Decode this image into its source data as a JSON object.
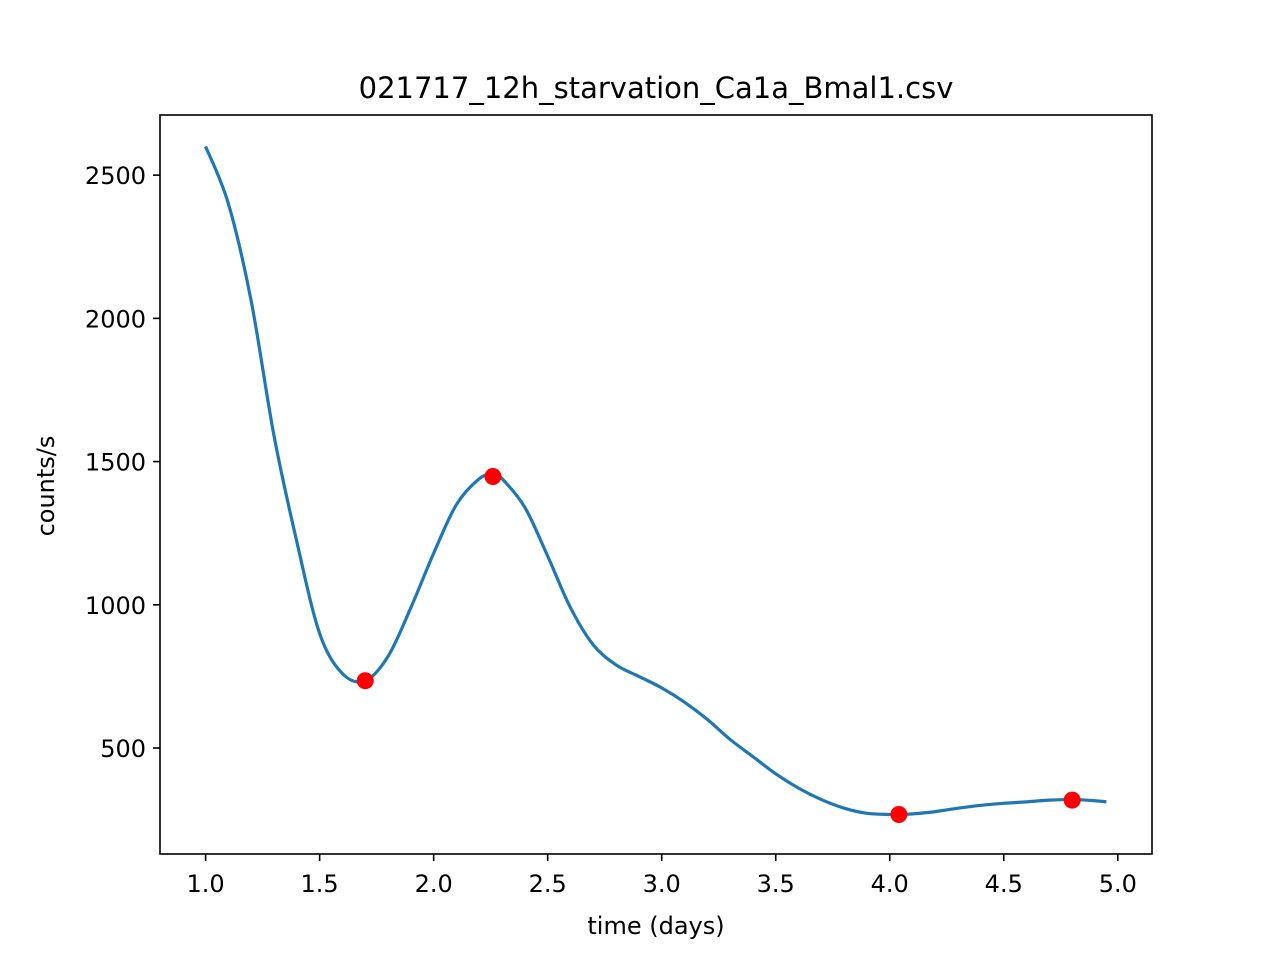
{
  "chart_data": {
    "type": "line",
    "title": "021717_12h_starvation_Ca1a_Bmal1.csv",
    "xlabel": "time (days)",
    "ylabel": "counts/s",
    "xlim": [
      0.8,
      5.15
    ],
    "ylim": [
      130,
      2710
    ],
    "xticks": [
      1.0,
      1.5,
      2.0,
      2.5,
      3.0,
      3.5,
      4.0,
      4.5,
      5.0
    ],
    "xtick_labels": [
      "1.0",
      "1.5",
      "2.0",
      "2.5",
      "3.0",
      "3.5",
      "4.0",
      "4.5",
      "5.0"
    ],
    "yticks": [
      500,
      1000,
      1500,
      2000,
      2500
    ],
    "ytick_labels": [
      "500",
      "1000",
      "1500",
      "2000",
      "2500"
    ],
    "grid": false,
    "series": [
      {
        "color": "#1f77b4",
        "x": [
          1.0,
          1.1,
          1.2,
          1.3,
          1.4,
          1.5,
          1.6,
          1.7,
          1.8,
          1.9,
          2.0,
          2.1,
          2.2,
          2.26,
          2.3,
          2.4,
          2.5,
          2.6,
          2.7,
          2.8,
          2.9,
          3.0,
          3.1,
          3.2,
          3.3,
          3.4,
          3.5,
          3.6,
          3.7,
          3.8,
          3.9,
          4.0,
          4.05,
          4.1,
          4.2,
          4.3,
          4.4,
          4.5,
          4.6,
          4.7,
          4.8,
          4.9,
          4.95
        ],
        "y": [
          2600,
          2400,
          2060,
          1590,
          1220,
          900,
          760,
          735,
          820,
          990,
          1180,
          1350,
          1440,
          1455,
          1440,
          1340,
          1170,
          990,
          860,
          790,
          750,
          710,
          660,
          600,
          530,
          470,
          410,
          360,
          320,
          290,
          272,
          268,
          268,
          270,
          278,
          290,
          300,
          307,
          312,
          318,
          320,
          316,
          312
        ]
      }
    ],
    "markers": {
      "color": "#ff0000",
      "x": [
        1.7,
        2.26,
        4.04,
        4.8
      ],
      "y": [
        735,
        1448,
        268,
        318
      ]
    }
  }
}
